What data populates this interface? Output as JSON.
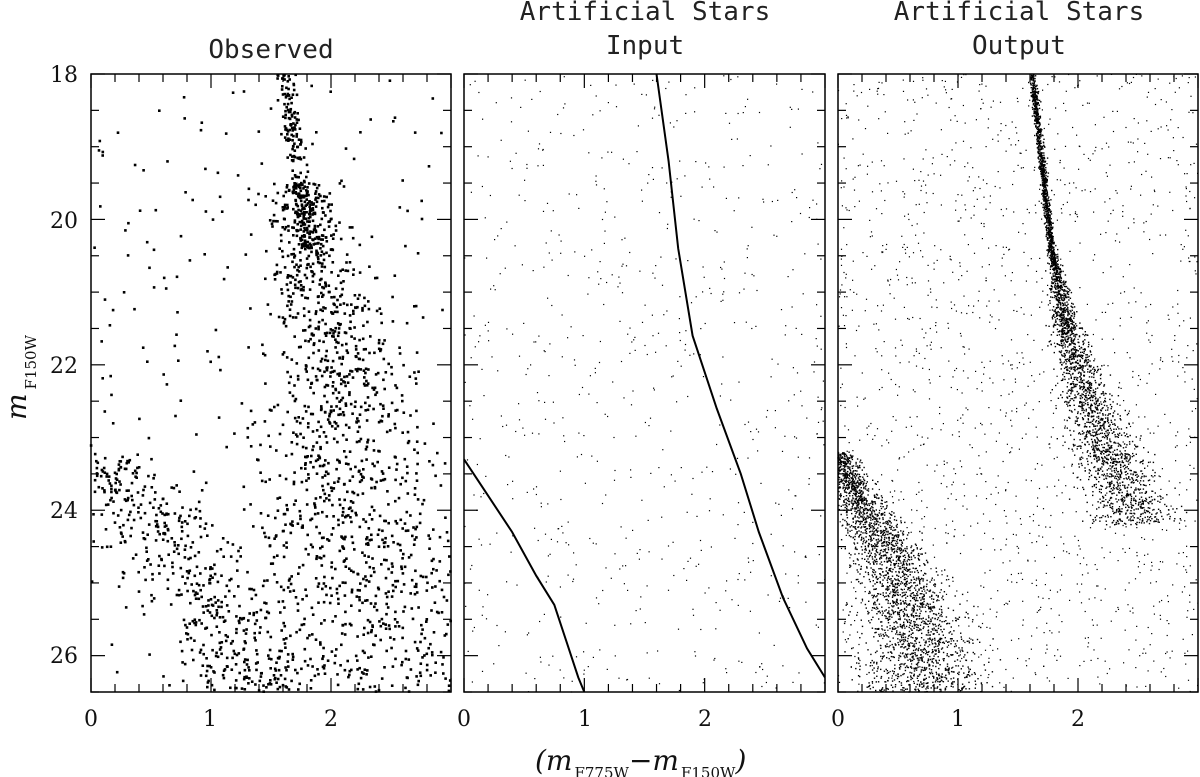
{
  "chart_data": [
    {
      "type": "scatter",
      "panel": "observed",
      "title": [
        "Observed"
      ],
      "xlim": [
        0,
        3
      ],
      "ylim": [
        26.5,
        18
      ],
      "y_inverted": true,
      "xticks": [
        0,
        1,
        2
      ],
      "yticks": [
        18,
        20,
        22,
        24,
        26
      ],
      "point_size": "large",
      "series": [
        {
          "kind": "sequence-cloud",
          "color": "#000000",
          "ridge": [
            [
              1.62,
              18.0
            ],
            [
              1.66,
              18.6
            ],
            [
              1.72,
              19.2
            ],
            [
              1.78,
              19.9
            ],
            [
              1.84,
              20.5
            ],
            [
              1.92,
              21.2
            ],
            [
              2.0,
              21.9
            ],
            [
              2.05,
              22.6
            ],
            [
              2.1,
              23.3
            ],
            [
              2.15,
              24.0
            ],
            [
              2.2,
              24.8
            ],
            [
              2.25,
              25.6
            ],
            [
              2.3,
              26.5
            ]
          ],
          "description_counts": 1500
        },
        {
          "kind": "faint-blue-sequence",
          "color": "#000000",
          "ridge": [
            [
              0.0,
              23.3
            ],
            [
              0.4,
              24.0
            ],
            [
              0.8,
              24.8
            ],
            [
              1.1,
              25.6
            ],
            [
              1.3,
              26.5
            ]
          ]
        }
      ]
    },
    {
      "type": "line",
      "panel": "input",
      "title": [
        "Artificial Stars",
        "Input"
      ],
      "xlim": [
        0,
        3
      ],
      "ylim": [
        26.5,
        18
      ],
      "y_inverted": true,
      "xticks": [
        0,
        1,
        2
      ],
      "yticks": [
        18,
        20,
        22,
        24,
        26
      ],
      "series": [
        {
          "name": "",
          "color": "#000000",
          "points": [
            [
              1.6,
              18.0
            ],
            [
              1.7,
              19.2
            ],
            [
              1.78,
              20.4
            ],
            [
              1.9,
              21.6
            ],
            [
              2.1,
              22.6
            ],
            [
              2.3,
              23.5
            ],
            [
              2.45,
              24.3
            ],
            [
              2.65,
              25.2
            ],
            [
              2.85,
              25.9
            ],
            [
              3.0,
              26.3
            ]
          ]
        },
        {
          "name": "",
          "color": "#000000",
          "points": [
            [
              0.0,
              23.3
            ],
            [
              0.2,
              23.8
            ],
            [
              0.4,
              24.3
            ],
            [
              0.6,
              24.9
            ],
            [
              0.75,
              25.3
            ],
            [
              0.85,
              25.8
            ],
            [
              0.95,
              26.3
            ],
            [
              1.0,
              26.5
            ]
          ]
        }
      ],
      "background_points": "uniform sparse field"
    },
    {
      "type": "scatter",
      "panel": "output",
      "title": [
        "Artificial Stars",
        "Output"
      ],
      "xlim": [
        0,
        3
      ],
      "ylim": [
        26.5,
        18
      ],
      "y_inverted": true,
      "xticks": [
        0,
        1,
        2
      ],
      "yticks": [
        18,
        20,
        22,
        24,
        26
      ],
      "point_size": "small",
      "series": [
        {
          "kind": "recovered-main-sequence",
          "color": "#000000",
          "ridge": [
            [
              1.62,
              18.0
            ],
            [
              1.7,
              19.2
            ],
            [
              1.78,
              20.4
            ],
            [
              1.9,
              21.5
            ],
            [
              2.05,
              22.3
            ],
            [
              2.2,
              23.0
            ],
            [
              2.35,
              23.6
            ],
            [
              2.45,
              24.0
            ]
          ]
        },
        {
          "kind": "recovered-blue-sequence",
          "color": "#000000",
          "ridge": [
            [
              0.0,
              23.3
            ],
            [
              0.2,
              23.9
            ],
            [
              0.4,
              24.5
            ],
            [
              0.55,
              25.1
            ],
            [
              0.65,
              25.6
            ],
            [
              0.7,
              26.1
            ]
          ]
        }
      ],
      "background_points": "uniform dense field"
    }
  ],
  "labels": {
    "title_observed": "Observed",
    "title_input_line1": "Artificial Stars",
    "title_input_line2": "Input",
    "title_output_line1": "Artificial Stars",
    "title_output_line2": "Output",
    "y_axis_main": "m",
    "y_axis_sub": "F150W",
    "x_axis_open": "(m",
    "x_axis_sub1": "F775W",
    "x_axis_dash": "−m",
    "x_axis_sub2": "F150W",
    "x_axis_close": ")",
    "y_ticks": [
      "18",
      "20",
      "22",
      "24",
      "26"
    ],
    "x_ticks_p1": [
      "0",
      "1",
      "2"
    ],
    "x_ticks_p2": [
      "0",
      "1",
      "2"
    ],
    "x_ticks_p3": [
      "0",
      "1",
      "2"
    ]
  }
}
